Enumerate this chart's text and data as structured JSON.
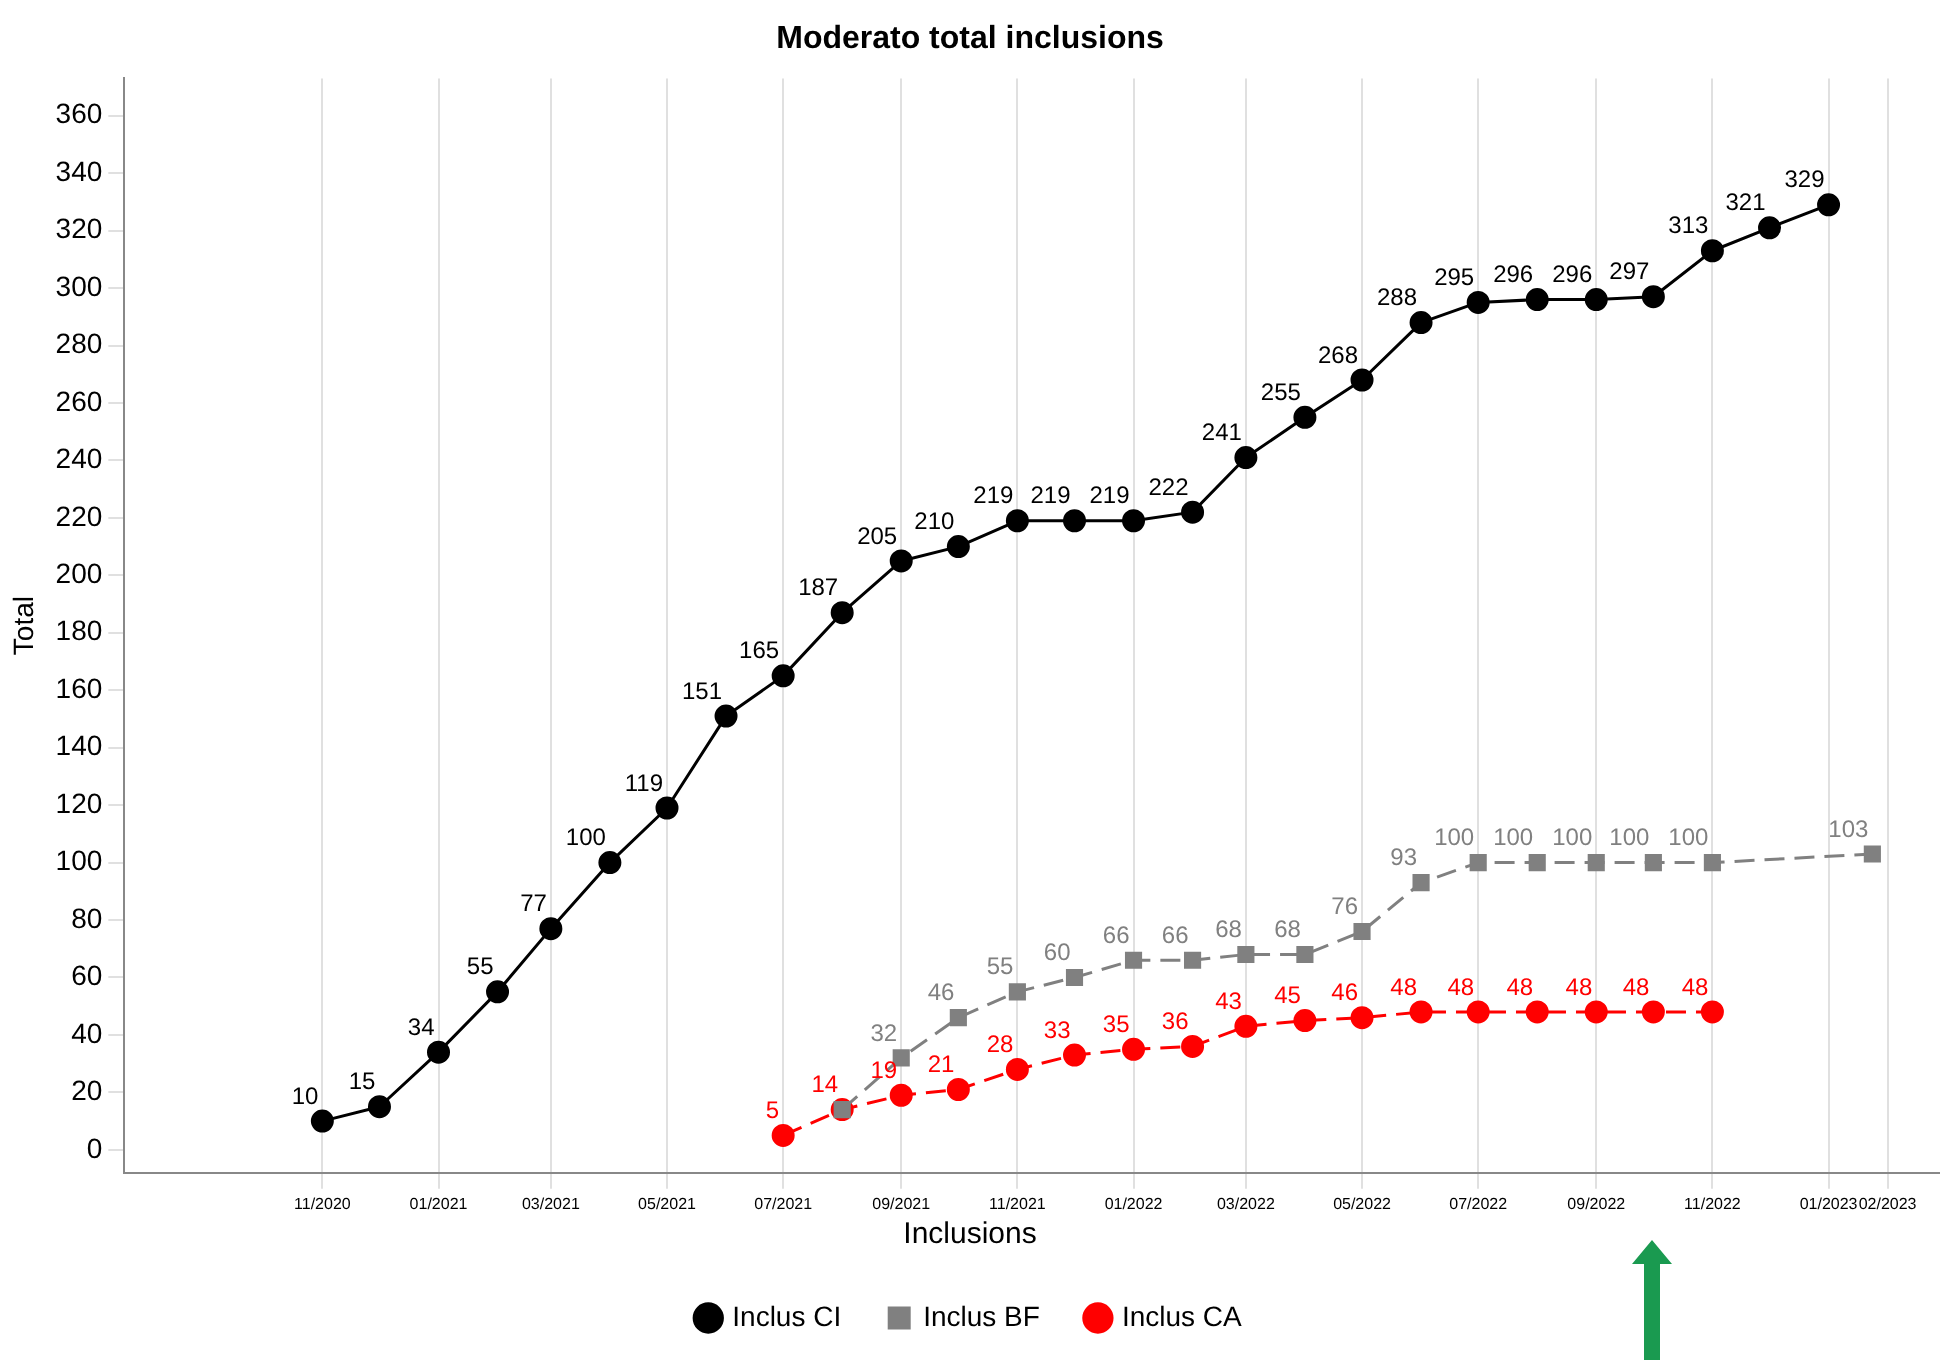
{
  "chart_data": {
    "type": "line",
    "title": "Moderato total inclusions",
    "ylabel": "Total",
    "legend_title": "Inclusions",
    "legend": "bottom",
    "grid": "x",
    "xlim": [
      "2020-07-20",
      "2023-02-28"
    ],
    "xticks": [
      {
        "value": "2020-11",
        "label": "11/2020"
      },
      {
        "value": "2021-01",
        "label": "01/2021"
      },
      {
        "value": "2021-03",
        "label": "03/2021"
      },
      {
        "value": "2021-05",
        "label": "05/2021"
      },
      {
        "value": "2021-07",
        "label": "07/2021"
      },
      {
        "value": "2021-09",
        "label": "09/2021"
      },
      {
        "value": "2021-11",
        "label": "11/2021"
      },
      {
        "value": "2022-01",
        "label": "01/2022"
      },
      {
        "value": "2022-03",
        "label": "03/2022"
      },
      {
        "value": "2022-05",
        "label": "05/2022"
      },
      {
        "value": "2022-07",
        "label": "07/2022"
      },
      {
        "value": "2022-09",
        "label": "09/2022"
      },
      {
        "value": "2022-11",
        "label": "11/2022"
      },
      {
        "value": "2023-01",
        "label": "01/2023"
      },
      {
        "value": "2023-02",
        "label": "02/2023"
      }
    ],
    "ylim": [
      -8,
      373
    ],
    "yticks": [
      0,
      20,
      40,
      60,
      80,
      100,
      120,
      140,
      160,
      180,
      200,
      220,
      240,
      260,
      280,
      300,
      320,
      340,
      360
    ],
    "series": [
      {
        "name": "Inclus CI",
        "color": "#000000",
        "marker": "circle",
        "line_style": "solid",
        "x": [
          "2020-11",
          "2020-12",
          "2021-01",
          "2021-02",
          "2021-03",
          "2021-04",
          "2021-05",
          "2021-06",
          "2021-07",
          "2021-08",
          "2021-09",
          "2021-10",
          "2021-11",
          "2021-12",
          "2022-01",
          "2022-02",
          "2022-03",
          "2022-04",
          "2022-05",
          "2022-06",
          "2022-07",
          "2022-08",
          "2022-09",
          "2022-10",
          "2022-11",
          "2022-12",
          "2023-01"
        ],
        "values": [
          10,
          15,
          34,
          55,
          77,
          100,
          119,
          151,
          165,
          187,
          205,
          210,
          219,
          219,
          219,
          222,
          241,
          255,
          268,
          288,
          295,
          296,
          296,
          297,
          313,
          321,
          329
        ],
        "value_labels": [
          "10",
          "15",
          "34",
          "55",
          "77",
          "100",
          "119",
          "151",
          "165",
          "187",
          "205",
          "210",
          "219",
          "219",
          "219",
          "222",
          "241",
          "255",
          "268",
          "288",
          "295",
          "296",
          "296",
          "297",
          "313",
          "321",
          "329"
        ]
      },
      {
        "name": "Inclus BF",
        "color": "#808080",
        "marker": "square",
        "line_style": "dashed",
        "x": [
          "2021-08",
          "2021-09",
          "2021-10",
          "2021-11",
          "2021-12",
          "2022-01",
          "2022-02",
          "2022-03",
          "2022-04",
          "2022-05",
          "2022-06",
          "2022-07",
          "2022-08",
          "2022-09",
          "2022-10",
          "2022-11",
          "2023-01-24"
        ],
        "values": [
          14,
          32,
          46,
          55,
          60,
          66,
          66,
          68,
          68,
          76,
          93,
          100,
          100,
          100,
          100,
          100,
          103
        ],
        "value_labels": [
          null,
          "32",
          "46",
          "55",
          "60",
          "66",
          "66",
          "68",
          "68",
          "76",
          "93",
          "100",
          "100",
          "100",
          "100",
          "100",
          "103"
        ]
      },
      {
        "name": "Inclus CA",
        "color": "#ff0000",
        "marker": "circle",
        "line_style": "dashed",
        "x": [
          "2021-07",
          "2021-08",
          "2021-09",
          "2021-10",
          "2021-11",
          "2021-12",
          "2022-01",
          "2022-02",
          "2022-03",
          "2022-04",
          "2022-05",
          "2022-06",
          "2022-07",
          "2022-08",
          "2022-09",
          "2022-10",
          "2022-11"
        ],
        "values": [
          5,
          14,
          19,
          21,
          28,
          33,
          35,
          36,
          43,
          45,
          46,
          48,
          48,
          48,
          48,
          48,
          48
        ],
        "value_labels": [
          "5",
          "14",
          "19",
          "21",
          "28",
          "33",
          "35",
          "36",
          "43",
          "45",
          "46",
          "48",
          "48",
          "48",
          "48",
          "48",
          "48"
        ]
      }
    ]
  }
}
